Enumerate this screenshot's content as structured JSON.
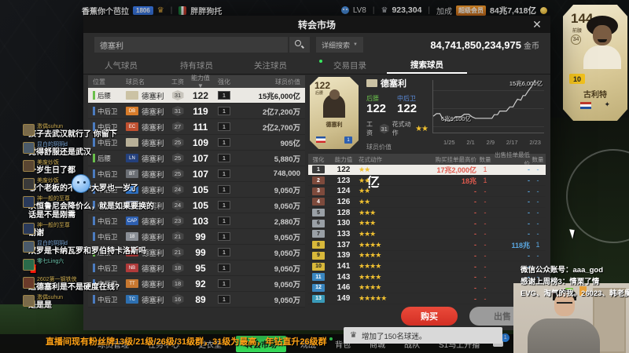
{
  "stream": {
    "streamer": "香蕉你个芭拉",
    "fan_badge": "1806",
    "subtitle": "胖胖狗托",
    "level": "LV8",
    "trophy_count": "923,304",
    "bonus_label": "加成",
    "vip_badge": "超级会员",
    "bonus_value": "84兆7,418亿",
    "notice": "直播间现有粉丝牌13级/21级/26级/31级群，31级为最高，年钻直升26级群",
    "wechat_line1": "微信公众账号：aaa_god",
    "wechat_line2": "感谢上周榜3：情栗了情",
    "wechat_line3": "EVG、淘气的我。26023、韩老魔"
  },
  "market": {
    "title": "转会市场",
    "close": "✕",
    "search_value": "德塞利",
    "detail_search": "详细搜索",
    "balance": "84,741,850,234,975",
    "balance_unit": "金币",
    "tabs_left": [
      "人气球员",
      "持有球员",
      "关注球员"
    ],
    "tabs_right": [
      "交易目录",
      "搜索球员"
    ],
    "active_tab": "搜索球员",
    "columns": [
      "位置",
      "球员名",
      "工资",
      "能力值 ▼",
      "强化",
      "球员价值"
    ],
    "rows": [
      {
        "pos": "后腰",
        "bar": "#6abf4b",
        "badge": "",
        "bbg": "#cbc2a4",
        "name": "德塞利",
        "wage": "31",
        "ovr": "122",
        "enh": "1",
        "value": "15兆6,000亿",
        "_cls": "selected"
      },
      {
        "pos": "中后卫",
        "bar": "#4b7bbf",
        "badge": "DB",
        "bbg": "#d87c2a",
        "name": "德塞利",
        "wage": "31",
        "ovr": "119",
        "enh": "1",
        "value": "2亿7,200万"
      },
      {
        "pos": "中后卫",
        "bar": "#4b7bbf",
        "badge": "EC",
        "bbg": "#c05030",
        "name": "德塞利",
        "wage": "27",
        "ovr": "111",
        "enh": "1",
        "value": "2亿2,700万"
      },
      {
        "pos": "中后卫",
        "bar": "#4b7bbf",
        "badge": "",
        "bbg": "#b8b098",
        "name": "德塞利",
        "wage": "25",
        "ovr": "109",
        "enh": "1",
        "value": "905亿"
      },
      {
        "pos": "后腰",
        "bar": "#6abf4b",
        "badge": "LN",
        "bbg": "#24407c",
        "name": "德塞利",
        "wage": "25",
        "ovr": "107",
        "enh": "1",
        "value": "5,880万"
      },
      {
        "pos": "中后卫",
        "bar": "#4b7bbf",
        "badge": "BT",
        "bbg": "#6b6f75",
        "name": "德塞利",
        "wage": "25",
        "ovr": "107",
        "enh": "1",
        "value": "748,000"
      },
      {
        "pos": "中后卫",
        "bar": "#4b7bbf",
        "badge": "DO",
        "bbg": "#2d6fc0",
        "name": "德塞利",
        "wage": "24",
        "ovr": "105",
        "enh": "1",
        "value": "9,050万"
      },
      {
        "pos": "中后卫",
        "bar": "#4b7bbf",
        "badge": "EB",
        "bbg": "#78829a",
        "name": "德塞利",
        "wage": "24",
        "ovr": "105",
        "enh": "1",
        "value": "9,050万"
      },
      {
        "pos": "中后卫",
        "bar": "#4b7bbf",
        "badge": "CAP",
        "bbg": "#2d5fb0",
        "name": "德塞利",
        "wage": "23",
        "ovr": "103",
        "enh": "1",
        "value": "2,880万"
      },
      {
        "pos": "中后卫",
        "bar": "#4b7bbf",
        "badge": "18",
        "bbg": "#8a8f96",
        "name": "德塞利",
        "wage": "21",
        "ovr": "99",
        "enh": "1",
        "value": "9,050万"
      },
      {
        "pos": "后腰",
        "bar": "#6abf4b",
        "badge": "MC",
        "bbg": "#a03030",
        "name": "德塞利",
        "wage": "21",
        "ovr": "99",
        "enh": "1",
        "value": "9,050万"
      },
      {
        "pos": "中后卫",
        "bar": "#4b7bbf",
        "badge": "NB",
        "bbg": "#b03a3a",
        "name": "德塞利",
        "wage": "18",
        "ovr": "95",
        "enh": "1",
        "value": "9,050万"
      },
      {
        "pos": "中后卫",
        "bar": "#4b7bbf",
        "badge": "TT",
        "bbg": "#c87830",
        "name": "德塞利",
        "wage": "18",
        "ovr": "92",
        "enh": "1",
        "value": "9,050万"
      },
      {
        "pos": "中后卫",
        "bar": "#4b7bbf",
        "badge": "TC",
        "bbg": "#2d6fb0",
        "name": "德塞利",
        "wage": "16",
        "ovr": "89",
        "enh": "1",
        "value": "9,050万"
      }
    ]
  },
  "detail": {
    "name": "德塞利",
    "card_ovr": "122",
    "card_pos": "后腰",
    "pos1_label": "后腰",
    "pos1_value": "122",
    "pos2_label": "中后卫",
    "pos2_value": "122",
    "wage_label": "工资",
    "wage": "31",
    "skill_label": "花式动作",
    "skill_stars": "★★",
    "value_label": "球员价值",
    "value": "15兆6,000亿",
    "chart_data": {
      "type": "line",
      "title": "球员价值走势",
      "max_label": "15兆6,000亿",
      "min_label": "6兆9,100亿",
      "x_ticks": [
        "1/25",
        "2/1",
        "2/9",
        "2/17",
        "2/23"
      ],
      "points": [
        [
          0,
          30
        ],
        [
          3,
          35
        ],
        [
          6,
          35
        ],
        [
          8,
          27
        ],
        [
          11,
          22
        ],
        [
          17,
          22
        ],
        [
          20,
          29
        ],
        [
          25,
          29
        ],
        [
          28,
          34
        ],
        [
          32,
          34
        ],
        [
          35,
          29
        ],
        [
          38,
          26
        ],
        [
          44,
          26
        ],
        [
          50,
          26
        ],
        [
          53,
          26
        ],
        [
          55,
          33
        ],
        [
          58,
          33
        ],
        [
          60,
          40
        ],
        [
          63,
          40
        ],
        [
          66,
          40
        ],
        [
          69,
          48
        ],
        [
          72,
          48
        ],
        [
          74,
          56
        ],
        [
          76,
          63
        ],
        [
          79,
          61
        ],
        [
          81,
          70
        ],
        [
          83,
          70
        ],
        [
          86,
          80
        ],
        [
          89,
          88
        ],
        [
          92,
          100
        ]
      ]
    },
    "enh_columns": [
      "强化",
      "能力值",
      "花式动作",
      "购买挂单最高价",
      "数量",
      "出售挂单最低价",
      "数量"
    ],
    "enh_rows": [
      {
        "lv": "1",
        "bg": "#3a3a3a",
        "fg": "#fff",
        "ovr": "122",
        "stars": "★★",
        "buy": "17兆2,000亿",
        "bqty": "1",
        "sell": "-",
        "sqty": "-",
        "_cls": "selected"
      },
      {
        "lv": "2",
        "bg": "#7d4a3c",
        "fg": "#fff",
        "ovr": "123",
        "stars": "★★",
        "buy": "18兆",
        "bqty": "1",
        "sell": "-",
        "sqty": "-"
      },
      {
        "lv": "3",
        "bg": "#7d4a3c",
        "fg": "#fff",
        "ovr": "124",
        "stars": "★★",
        "buy": "-",
        "bqty": "-",
        "sell": "-",
        "sqty": "-"
      },
      {
        "lv": "4",
        "bg": "#7d4a3c",
        "fg": "#fff",
        "ovr": "126",
        "stars": "★★",
        "buy": "-",
        "bqty": "-",
        "sell": "-",
        "sqty": "-"
      },
      {
        "lv": "5",
        "bg": "#9aa0a6",
        "fg": "#222",
        "ovr": "128",
        "stars": "★★★",
        "buy": "-",
        "bqty": "-",
        "sell": "-",
        "sqty": "-"
      },
      {
        "lv": "6",
        "bg": "#9aa0a6",
        "fg": "#222",
        "ovr": "130",
        "stars": "★★★",
        "buy": "-",
        "bqty": "-",
        "sell": "-",
        "sqty": "-"
      },
      {
        "lv": "7",
        "bg": "#9aa0a6",
        "fg": "#222",
        "ovr": "133",
        "stars": "★★★",
        "buy": "-",
        "bqty": "-",
        "sell": "-",
        "sqty": "-"
      },
      {
        "lv": "8",
        "bg": "#d8b83a",
        "fg": "#222",
        "ovr": "137",
        "stars": "★★★★",
        "buy": "-",
        "bqty": "-",
        "sell": "118兆",
        "sqty": "1"
      },
      {
        "lv": "9",
        "bg": "#d8b83a",
        "fg": "#222",
        "ovr": "139",
        "stars": "★★★★",
        "buy": "-",
        "bqty": "-",
        "sell": "-",
        "sqty": "-"
      },
      {
        "lv": "10",
        "bg": "#d8b83a",
        "fg": "#222",
        "ovr": "141",
        "stars": "★★★★",
        "buy": "-",
        "bqty": "-",
        "sell": "-",
        "sqty": "-"
      },
      {
        "lv": "11",
        "bg": "#3a87c0",
        "fg": "#fff",
        "ovr": "143",
        "stars": "★★★★",
        "buy": "-",
        "bqty": "-",
        "sell": "-",
        "sqty": "-"
      },
      {
        "lv": "12",
        "bg": "#3a87c0",
        "fg": "#fff",
        "ovr": "146",
        "stars": "★★★★",
        "buy": "-",
        "bqty": "-",
        "sell": "-",
        "sqty": "-"
      },
      {
        "lv": "13",
        "bg": "#3a9ab8",
        "fg": "#fff",
        "ovr": "149",
        "stars": "★★★★★",
        "buy": "-",
        "bqty": "-",
        "sell": "-",
        "sqty": "-"
      }
    ],
    "buy_label": "购买",
    "sell_label": "出售",
    "toast": "增加了150名球迷。"
  },
  "chat": [
    {
      "user": "激偶suhun",
      "ucolor": "#c8a84e",
      "acolor": "#7a6a4a",
      "msg": "孩子去武汉就行了 你留下"
    },
    {
      "user": "显白的玥玥d",
      "ucolor": "#7aa7d8",
      "acolor": "#4a5a6a",
      "msg": "觉得舒服还是武汉"
    },
    {
      "user": "美废炒饭",
      "ucolor": "#c8a84e",
      "acolor": "#5a4632",
      "msg": "一岁生日了都"
    },
    {
      "user": "美废炒饭",
      "ucolor": "#c8a84e",
      "acolor": "#3a3a3a",
      "msg": "哪个老板的不保护大罗也一岁了"
    },
    {
      "user": "神一般的至尊",
      "ucolor": "#c8a84e",
      "acolor": "#2a3a5a",
      "msg": "永恒鲁尼会降价么，就是如果要换的话是不是刚需"
    },
    {
      "user": "神一般的至尊",
      "ucolor": "#c8a84e",
      "acolor": "#2a3a5a",
      "msg": "谢谢"
    },
    {
      "user": "显白的玥玥d",
      "ucolor": "#7aa7d8",
      "acolor": "#4a5a6a",
      "msg": "双罗是卡纳瓦罗和罗伯特卡洛斯吗"
    },
    {
      "user": "零七Ling六",
      "ucolor": "#6ec8b0",
      "acolor": "#2a6a4a",
      "msg": "🧧"
    },
    {
      "user": "2602第一钢铁侠",
      "ucolor": "#c8a84e",
      "acolor": "#6a3a2a",
      "msg": "这德塞利是不是硬度在线?"
    },
    {
      "user": "激偶suhun",
      "ucolor": "#c8a84e",
      "acolor": "#7a6a4a",
      "msg": "是是是"
    }
  ],
  "nav": {
    "items": [
      "球员管理",
      "任务中心",
      "更衣室",
      "转会市场",
      "观战",
      "背包",
      "商城",
      "战队"
    ],
    "play_label": "S1马上开播",
    "chat_badge": "1",
    "home_badge": "11",
    "bell_badge": "20"
  },
  "side_card": {
    "ovr": "144",
    "pos": "前腰",
    "circle_num": "34",
    "level": "10",
    "name": "古利特",
    "logo": "✦"
  }
}
